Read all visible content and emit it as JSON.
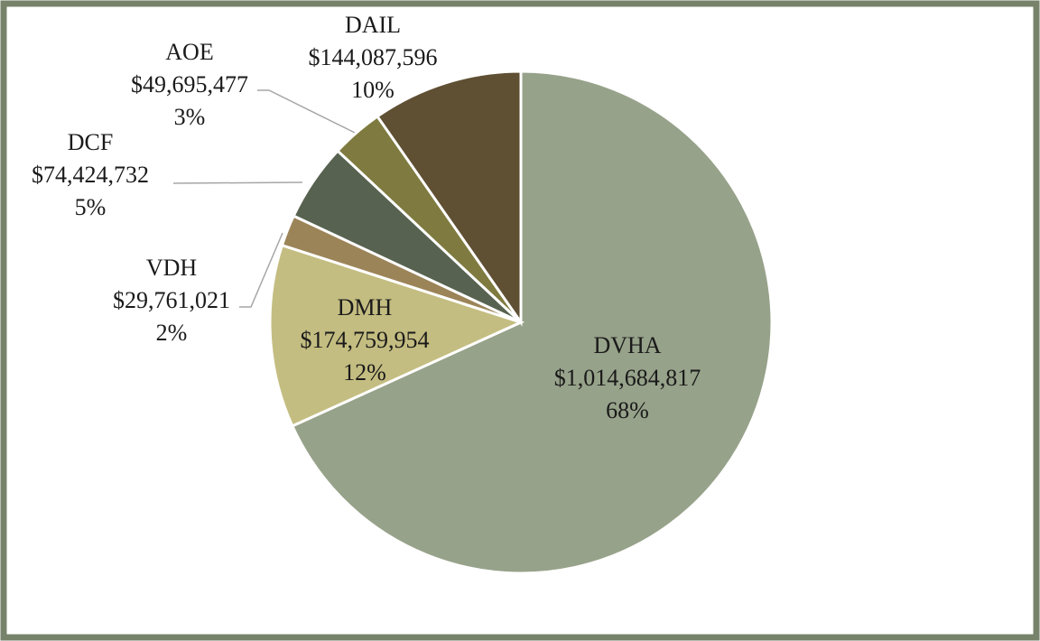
{
  "chart_data": {
    "type": "pie",
    "categories": [
      "DVHA",
      "DMH",
      "VDH",
      "DCF",
      "AOE",
      "DAIL"
    ],
    "values": [
      1014684817,
      174759954,
      29761021,
      74424732,
      49695477,
      144087596
    ],
    "value_labels": [
      "$1,014,684,817",
      "$174,759,954",
      "$29,761,021",
      "$74,424,732",
      "$49,695,477",
      "$144,087,596"
    ],
    "percent_labels": [
      "68%",
      "12%",
      "2%",
      "5%",
      "3%",
      "10%"
    ],
    "colors": [
      "#97a28a",
      "#c4bd81",
      "#9c8459",
      "#576250",
      "#7f7b40",
      "#5f4f33"
    ]
  }
}
